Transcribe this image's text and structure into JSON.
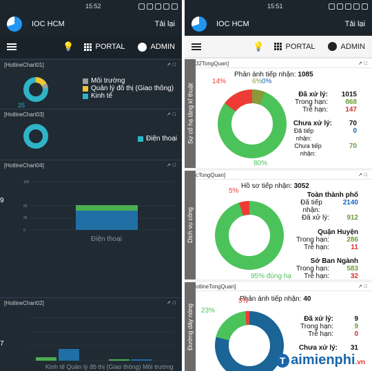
{
  "left": {
    "status_time": "15:52",
    "app_title": "IOC HCM",
    "reload": "Tải lại",
    "portal": "PORTAL",
    "admin": "ADMIN",
    "panels": [
      {
        "title": "[HotlineChart01]"
      },
      {
        "title": "[HotlineChart03]"
      },
      {
        "title": "[HotlineChart04]"
      },
      {
        "title": "[HotlineChart02]"
      }
    ],
    "chart01": {
      "legend": [
        {
          "label": "Môi trường",
          "color": "#9e9e9e"
        },
        {
          "label": "Quản lý đô thị (Giao thông)",
          "color": "#f3c531"
        },
        {
          "label": "Kinh tế",
          "color": "#2fb4c7"
        }
      ],
      "partial_label": "25"
    },
    "chart03": {
      "legend": [
        {
          "label": "Điện thoại",
          "color": "#2fb4c7"
        }
      ]
    },
    "chart04": {
      "category": "Điện thoại",
      "ticks": [
        "100",
        "75",
        "50",
        "25",
        "0"
      ],
      "side_value": "9"
    },
    "chart02": {
      "xlabels": "Kinh tế Quản lý đô thị (Giao thông) Môi trường",
      "side_value": "7"
    }
  },
  "right": {
    "status_time": "15:51",
    "app_title": "IOC HCM",
    "reload": "Tải lại",
    "portal": "PORTAL",
    "admin": "ADMIN",
    "p1": {
      "title": "32TongQuan]",
      "side": "Sự cố hạ tầng kĩ thuật",
      "heading": "Phản ánh tiếp nhận:",
      "heading_value": "1085",
      "pct_red": "14%",
      "pct_olive": "6%",
      "pct_blue": "0%",
      "pct_green": "80%",
      "s1": {
        "title": "Đã xử lý:",
        "total": "1015",
        "l1": "Trong hạn:",
        "v1": "868",
        "l2": "Trễ hạn:",
        "v2": "147"
      },
      "s2": {
        "title": "Chưa xử lý:",
        "total": "70",
        "l1": "Đã tiếp nhận:",
        "v1": "0",
        "l2": "Chưa tiếp nhận:",
        "v2": "70"
      }
    },
    "p2": {
      "title": "cTongQuan]",
      "side": "Dịch vụ công",
      "heading": "Hồ sơ tiếp nhận:",
      "heading_value": "3052",
      "pct_red": "5%",
      "pct_green": "95% đúng hạ",
      "s1": {
        "title": "Toàn thành phố",
        "l1": "Đã tiếp nhận:",
        "v1": "2140",
        "l2": "Đã xử lý:",
        "v2": "912"
      },
      "s2": {
        "title": "Quận Huyện",
        "l1": "Trong hạn:",
        "v1": "286",
        "l2": "Trễ hạn:",
        "v2": "11"
      },
      "s3": {
        "title": "Sở Ban Ngành",
        "l1": "Trong hạn:",
        "v1": "583",
        "l2": "Trễ hạn:",
        "v2": "32"
      }
    },
    "p3": {
      "title": "otlineTongQuan]",
      "side": "Đường dây nóng",
      "heading": "Phản ánh tiếp nhận:",
      "heading_value": "40",
      "pct_red": "5%",
      "pct_green": "23%",
      "s1": {
        "title": "Đã xử lý:",
        "total": "9",
        "l1": "Trong hạn:",
        "v1": "9",
        "l2": "Trễ hạn:",
        "v2": "0"
      },
      "s2": {
        "title": "Chưa xử lý:",
        "total": "31"
      }
    },
    "watermark": "aimienphi",
    "watermark_sub": ".vn",
    "watermark_badge": "T"
  }
}
